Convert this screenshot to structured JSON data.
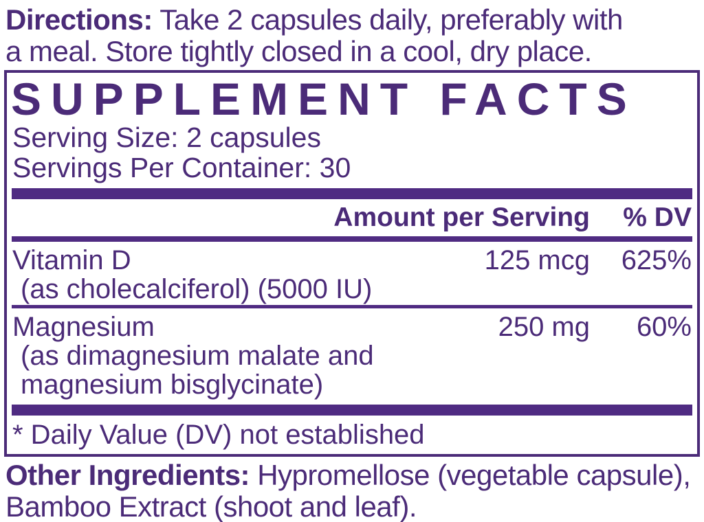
{
  "colors": {
    "ink_purple": "#4b2b78",
    "bar_purple": "#4f2b82",
    "background": "#ffffff"
  },
  "directions": {
    "label": "Directions:",
    "line1": "Take 2 capsules daily, preferably with",
    "line2": "a meal. Store tightly closed in a cool, dry place."
  },
  "supplement_facts": {
    "title": "SUPPLEMENT FACTS",
    "serving_size": "Serving Size: 2 capsules",
    "servings_per_container": "Servings Per Container: 30",
    "columns": {
      "amount": "Amount per Serving",
      "dv": "% DV"
    },
    "rows": [
      {
        "name": "Vitamin D",
        "amount": "125 mcg",
        "dv": "625%",
        "details": [
          "(as cholecalciferol) (5000 IU)"
        ]
      },
      {
        "name": "Magnesium",
        "amount": "250 mg",
        "dv": "60%",
        "details": [
          "(as dimagnesium malate and",
          "magnesium bisglycinate)"
        ]
      }
    ],
    "footnote": "* Daily Value (DV) not established"
  },
  "other_ingredients": {
    "label": "Other Ingredients:",
    "line1": "Hypromellose (vegetable capsule),",
    "line2": "Bamboo Extract (shoot and leaf)."
  }
}
